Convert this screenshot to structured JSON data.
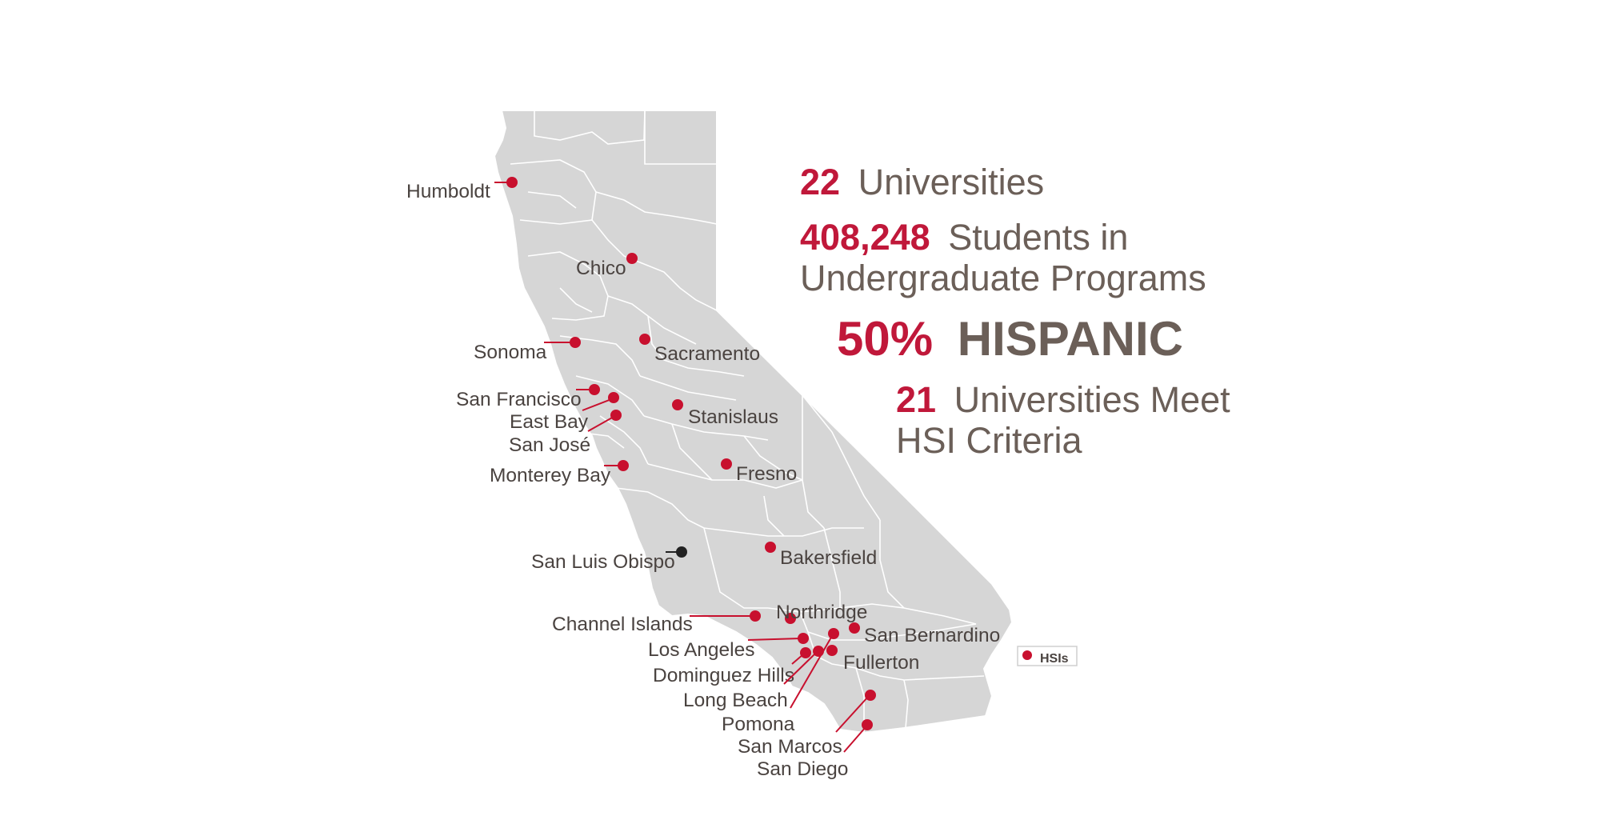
{
  "colors": {
    "hsi": "#c8102e",
    "non_hsi": "#222222",
    "state_fill": "#d6d6d6",
    "county_line": "#ffffff",
    "accent": "#c0183a",
    "text": "#6b5f58"
  },
  "stats": {
    "universities_num": "22",
    "universities_txt": "Universities",
    "students_num": "408,248",
    "students_txt1": "Students in",
    "students_txt2": "Undergraduate Programs",
    "hispanic_pct": "50%",
    "hispanic_txt": "HISPANIC",
    "hsi_num": "21",
    "hsi_txt1": "Universities Meet",
    "hsi_txt2": "HSI Criteria"
  },
  "legend": {
    "label": "HSIs"
  },
  "campuses": [
    {
      "name": "Humboldt",
      "hsi": true
    },
    {
      "name": "Chico",
      "hsi": true
    },
    {
      "name": "Sonoma",
      "hsi": true
    },
    {
      "name": "Sacramento",
      "hsi": true
    },
    {
      "name": "San Francisco",
      "hsi": true
    },
    {
      "name": "East Bay",
      "hsi": true
    },
    {
      "name": "San José",
      "hsi": true
    },
    {
      "name": "Stanislaus",
      "hsi": true
    },
    {
      "name": "Monterey Bay",
      "hsi": true
    },
    {
      "name": "Fresno",
      "hsi": true
    },
    {
      "name": "San Luis Obispo",
      "hsi": false
    },
    {
      "name": "Bakersfield",
      "hsi": true
    },
    {
      "name": "Northridge",
      "hsi": true
    },
    {
      "name": "Channel Islands",
      "hsi": true
    },
    {
      "name": "San Bernardino",
      "hsi": true
    },
    {
      "name": "Los Angeles",
      "hsi": true
    },
    {
      "name": "Fullerton",
      "hsi": true
    },
    {
      "name": "Dominguez Hills",
      "hsi": true
    },
    {
      "name": "Long Beach",
      "hsi": true
    },
    {
      "name": "Pomona",
      "hsi": true
    },
    {
      "name": "San Marcos",
      "hsi": true
    },
    {
      "name": "San Diego",
      "hsi": true
    }
  ]
}
